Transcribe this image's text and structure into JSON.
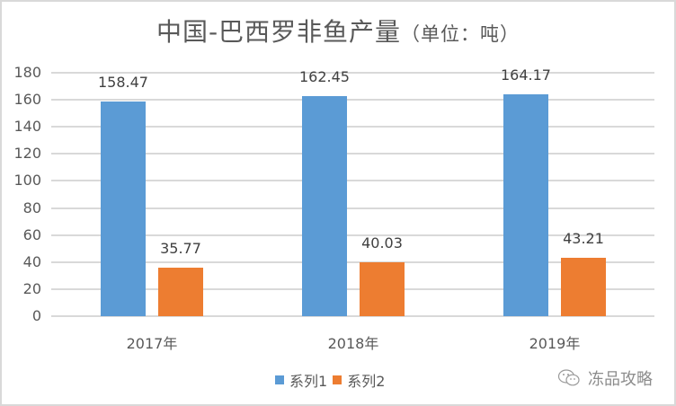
{
  "chart_data": {
    "type": "bar",
    "title": "中国-巴西罗非鱼产量",
    "title_unit": "（单位：吨）",
    "categories": [
      "2017年",
      "2018年",
      "2019年"
    ],
    "series": [
      {
        "name": "系列1",
        "color": "#5b9bd5",
        "values": [
          158.47,
          162.45,
          164.17
        ],
        "labels": [
          "158.47",
          "162.45",
          "164.17"
        ]
      },
      {
        "name": "系列2",
        "color": "#ed7d31",
        "values": [
          35.77,
          40.03,
          43.21
        ],
        "labels": [
          "35.77",
          "40.03",
          "43.21"
        ]
      }
    ],
    "xlabel": "",
    "ylabel": "",
    "ylim": [
      0,
      180
    ],
    "yticks": [
      "180",
      "160",
      "140",
      "120",
      "100",
      "80",
      "60",
      "40",
      "20",
      "0"
    ],
    "grid": true,
    "legend_position": "bottom"
  },
  "watermark": {
    "icon": "wechat-icon",
    "text": "冻品攻略"
  }
}
